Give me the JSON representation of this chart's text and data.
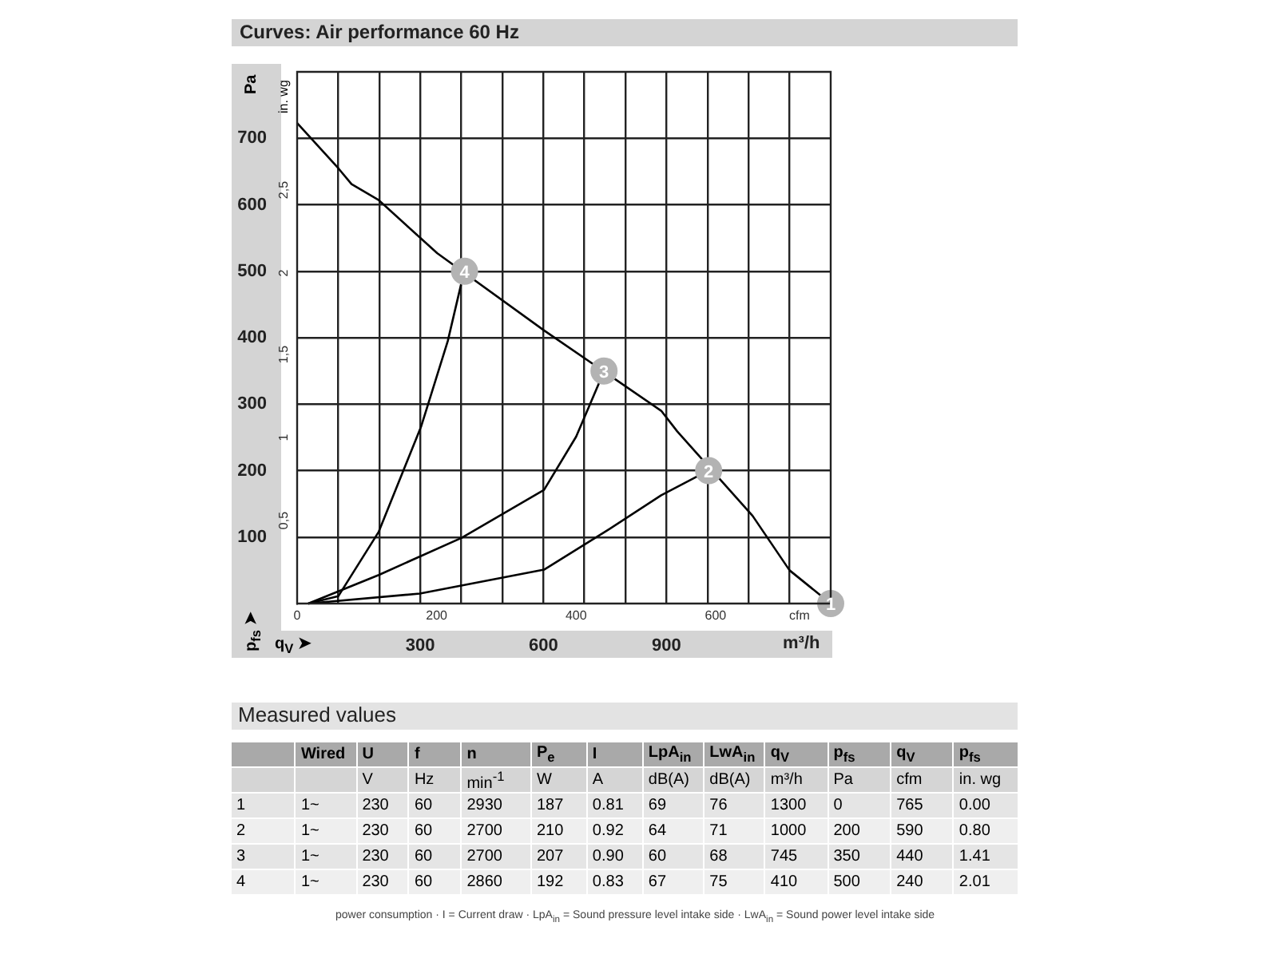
{
  "chart_data": {
    "type": "line",
    "title": "Curves: Air performance 60 Hz",
    "xlabel": "cfm",
    "x2label": "m³/h",
    "ylabel": "Pa",
    "y2label": "in. wg",
    "xlim": [
      0,
      765
    ],
    "xticks": [
      0,
      200,
      400,
      600
    ],
    "x2lim": [
      0,
      1300
    ],
    "x2ticks": [
      {
        "value": 100,
        "label": null
      },
      {
        "value": 200,
        "label": null
      },
      300,
      {
        "value": 400,
        "label": null
      },
      {
        "value": 500,
        "label": null
      },
      600,
      {
        "value": 700,
        "label": null
      },
      {
        "value": 800,
        "label": null
      },
      900,
      {
        "value": 1000,
        "label": null
      },
      {
        "value": 1100,
        "label": null
      },
      {
        "value": 1200,
        "label": null
      }
    ],
    "ylim": [
      0,
      800
    ],
    "yticks": [
      100,
      200,
      300,
      400,
      500,
      600,
      700
    ],
    "y2lim": [
      0,
      3.21
    ],
    "y2ticks": [
      {
        "value": 0.5,
        "label": "0,5"
      },
      1,
      {
        "value": 1.5,
        "label": "1,5"
      },
      2,
      {
        "value": 2.5,
        "label": "2,5"
      }
    ],
    "grid": true,
    "legend": false,
    "series": [
      {
        "color": "#000000",
        "marker": "none",
        "x": [
          0,
          59,
          78,
          117,
          201,
          354,
          522,
          545,
          653,
          706,
          765
        ],
        "values": [
          723,
          655,
          631,
          607,
          527,
          411,
          290,
          259,
          132,
          50,
          0
        ]
      },
      {
        "color": "#000000",
        "marker": "none",
        "x": [
          16,
          59,
          117,
          178,
          216,
          235
        ],
        "values": [
          0,
          11,
          108,
          267,
          395,
          480
        ]
      },
      {
        "color": "#000000",
        "marker": "none",
        "x": [
          16,
          117,
          236,
          354,
          400,
          433
        ],
        "values": [
          0,
          43,
          99,
          171,
          251,
          332
        ]
      },
      {
        "color": "#000000",
        "marker": "none",
        "x": [
          16,
          176,
          354,
          446,
          522,
          575
        ],
        "values": [
          0,
          15,
          51,
          111,
          163,
          192
        ]
      },
      {
        "type": "scatter",
        "color": "#b3b3b3",
        "marker": "circle",
        "x": [
          765,
          590,
          440,
          240
        ],
        "values": [
          0,
          200,
          350,
          500
        ]
      }
    ],
    "annotations": [
      {
        "text": "1",
        "x": 765,
        "y": 0
      },
      {
        "text": "2",
        "x": 590,
        "y": 200
      },
      {
        "text": "3",
        "x": 440,
        "y": 350
      },
      {
        "text": "4",
        "x": 240,
        "y": 500
      },
      "p$_{fs}$ ➤",
      "q$_{V}$ ➤",
      "Measured values",
      "Wired",
      "U",
      "f",
      "n",
      "P$_{e}$",
      "I",
      "LpA$_{in}$",
      "LwA$_{in}$",
      "q$_{V}$",
      "p$_{fs}$",
      "q$_{V}$",
      "p$_{fs}$",
      "V",
      "Hz",
      "min$^{-1}$",
      "W",
      "A",
      "dB(A)",
      "dB(A)",
      "m³/h",
      "Pa",
      "cfm",
      "in. wg",
      "1",
      "1~",
      "230",
      "60",
      "2930",
      "187",
      "0.81",
      "69",
      "76",
      "1300",
      "0",
      "765",
      "0.00",
      "2",
      "1~",
      "230",
      "60",
      "2700",
      "210",
      "0.92",
      "64",
      "71",
      "1000",
      "200",
      "590",
      "0.80",
      "3",
      "1~",
      "230",
      "60",
      "2700",
      "207",
      "0.90",
      "60",
      "68",
      "745",
      "350",
      "440",
      "1.41",
      "4",
      "1~",
      "230",
      "60",
      "2860",
      "192",
      "0.83",
      "67",
      "75",
      "410",
      "500",
      "240",
      "2.01",
      "power consumption · I = Current draw · LpA$_{in}$ = Sound pressure level intake side · LwA$_{in}$ = Sound power level intake side"
    ]
  }
}
